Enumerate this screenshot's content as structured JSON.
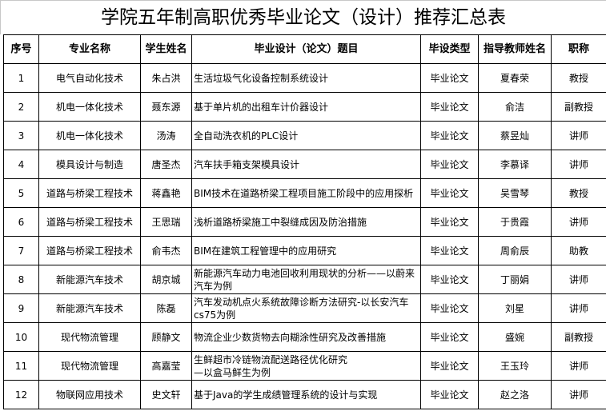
{
  "title": "学院五年制高职优秀毕业论文（设计）推荐汇总表",
  "headers": [
    "序号",
    "专业名称",
    "学生姓名",
    "毕业设计（论文）题目",
    "毕设类型",
    "指导教师姓名",
    "职称"
  ],
  "rows": [
    {
      "no": "1",
      "major": "电气自动化技术",
      "student": "朱占洪",
      "topic": "生活垃圾气化设备控制系统设计",
      "type": "毕业论文",
      "advisor": "夏春荣",
      "rank": "教授"
    },
    {
      "no": "2",
      "major": "机电一体化技术",
      "student": "聂东源",
      "topic": "基于单片机的出租车计价器设计",
      "type": "毕业论文",
      "advisor": "俞洁",
      "rank": "副教授"
    },
    {
      "no": "3",
      "major": "机电一体化技术",
      "student": "汤涛",
      "topic": "全自动洗衣机的PLC设计",
      "type": "毕业论文",
      "advisor": "蔡昱灿",
      "rank": "讲师"
    },
    {
      "no": "4",
      "major": "模具设计与制造",
      "student": "唐圣杰",
      "topic": "汽车扶手箱支架模具设计",
      "type": "毕业论文",
      "advisor": "李慕译",
      "rank": "讲师"
    },
    {
      "no": "5",
      "major": "道路与桥梁工程技术",
      "student": "蒋鑫艳",
      "topic": "BIM技术在道路桥梁工程项目施工阶段中的应用探析",
      "type": "毕业论文",
      "advisor": "吴雪琴",
      "rank": "教授"
    },
    {
      "no": "6",
      "major": "道路与桥梁工程技术",
      "student": "王思瑞",
      "topic": "浅析道路桥梁施工中裂缝成因及防治措施",
      "type": "毕业论文",
      "advisor": "于贵霞",
      "rank": "讲师"
    },
    {
      "no": "7",
      "major": "道路与桥梁工程技术",
      "student": "俞韦杰",
      "topic": "BIM在建筑工程管理中的应用研究",
      "type": "毕业论文",
      "advisor": "周俞辰",
      "rank": "助教"
    },
    {
      "no": "8",
      "major": "新能源汽车技术",
      "student": "胡京城",
      "topic": "新能源汽车动力电池回收利用现状的分析——以蔚来汽车为例",
      "type": "毕业论文",
      "advisor": "丁丽娟",
      "rank": "讲师"
    },
    {
      "no": "9",
      "major": "新能源汽车技术",
      "student": "陈磊",
      "topic": "汽车发动机点火系统故障诊断方法研究-以长安汽车cs75为例",
      "type": "毕业论文",
      "advisor": "刘星",
      "rank": "讲师"
    },
    {
      "no": "10",
      "major": "现代物流管理",
      "student": "顾静文",
      "topic": "物流企业少数货物去向糊涂性研究及改善措施",
      "type": "毕业论文",
      "advisor": "盛婉",
      "rank": "副教授"
    },
    {
      "no": "11",
      "major": "现代物流管理",
      "student": "高嘉莹",
      "topic": "生鲜超市冷链物流配送路径优化研究\n—以盒马鲜生为例",
      "type": "毕业论文",
      "advisor": "王玉玲",
      "rank": "讲师"
    },
    {
      "no": "12",
      "major": "物联网应用技术",
      "student": "史文轩",
      "topic": "基于Java的学生成绩管理系统的设计与实现",
      "type": "毕业论文",
      "advisor": "赵之洛",
      "rank": "讲师"
    }
  ]
}
